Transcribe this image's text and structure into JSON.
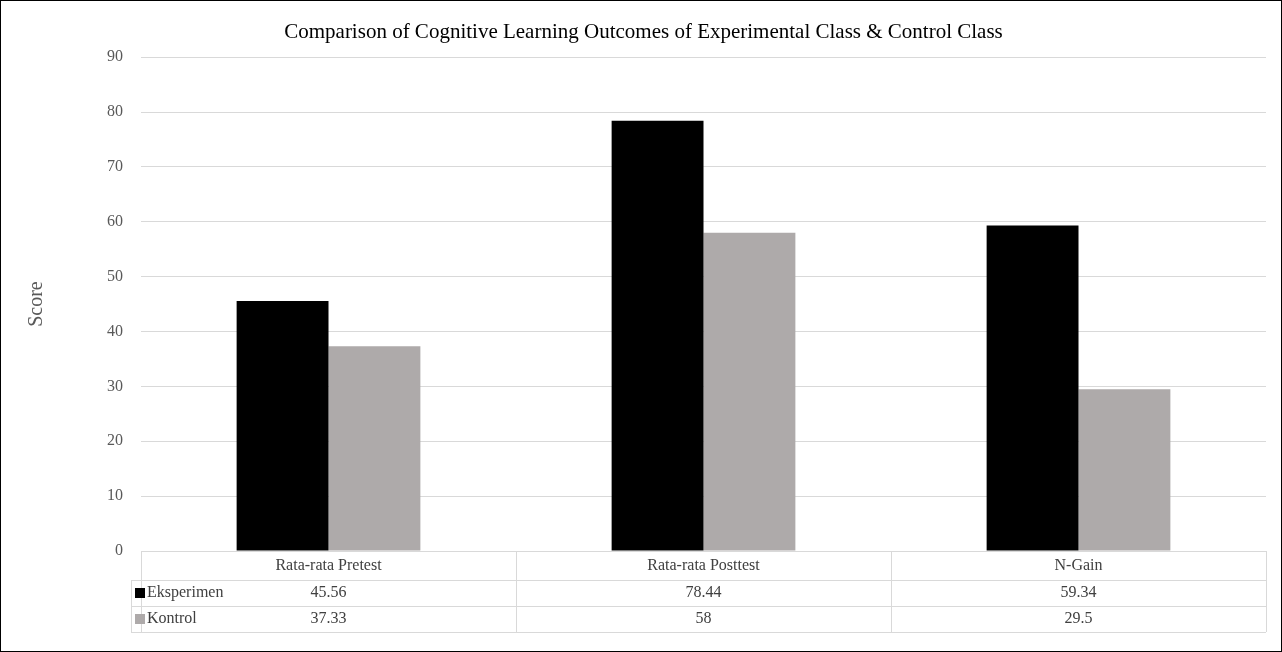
{
  "chart_data": {
    "type": "bar",
    "title": "Comparison of Cognitive Learning Outcomes of Experimental Class & Control Class",
    "ylabel": "Score",
    "categories": [
      "Rata-rata Pretest",
      "Rata-rata Posttest",
      "N-Gain"
    ],
    "series": [
      {
        "name": "Eksperimen",
        "color": "#000000",
        "values": [
          45.56,
          78.44,
          59.34
        ]
      },
      {
        "name": "Kontrol",
        "color": "#aeaaaa",
        "values": [
          37.33,
          58,
          29.5
        ]
      }
    ],
    "ylim": [
      0,
      90
    ],
    "yticks": [
      0,
      10,
      20,
      30,
      40,
      50,
      60,
      70,
      80,
      90
    ],
    "grid": "y",
    "legend": "bottom left",
    "data_labels": true
  }
}
